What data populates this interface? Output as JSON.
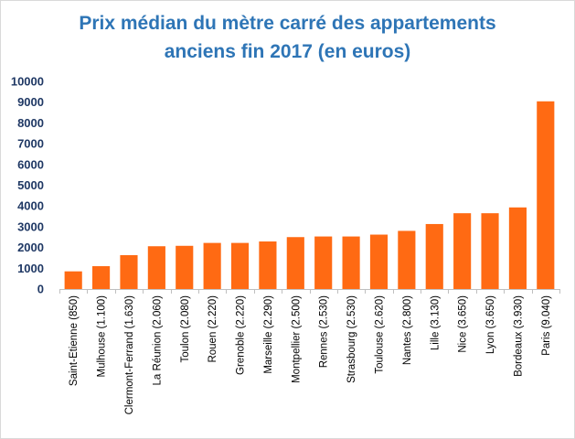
{
  "chart_data": {
    "type": "bar",
    "title_lines": [
      "Prix médian du mètre carré des appartements",
      "anciens fin 2017 (en euros)"
    ],
    "categories": [
      "Saint-Etienne (850)",
      "Mulhouse (1.100)",
      "Clermont-Ferrand (1.630)",
      "La Réunion (2.060)",
      "Toulon (2.080)",
      "Rouen (2.220)",
      "Grenoble (2.220)",
      "Marseille (2.290)",
      "Montpellier (2.500)",
      "Rennes (2.530)",
      "Strasbourg (2.530)",
      "Toulouse (2.620)",
      "Nantes (2.800)",
      "Lille (3.130)",
      "Nice (3.650)",
      "Lyon (3.650)",
      "Bordeaux (3.930)",
      "Paris (9.040)"
    ],
    "values": [
      850,
      1100,
      1630,
      2060,
      2080,
      2220,
      2220,
      2290,
      2500,
      2530,
      2530,
      2620,
      2800,
      3130,
      3650,
      3650,
      3930,
      9040
    ],
    "yticks": [
      "0",
      "1000",
      "2000",
      "3000",
      "4000",
      "5000",
      "6000",
      "7000",
      "8000",
      "9000",
      "10000"
    ],
    "ylim": [
      0,
      10000
    ],
    "grid": false,
    "legend": "none",
    "colors": {
      "bar": "#ff6a13",
      "title": "#2e75b6",
      "ytick": "#1f3864",
      "axis": "#bfbfbf"
    }
  }
}
